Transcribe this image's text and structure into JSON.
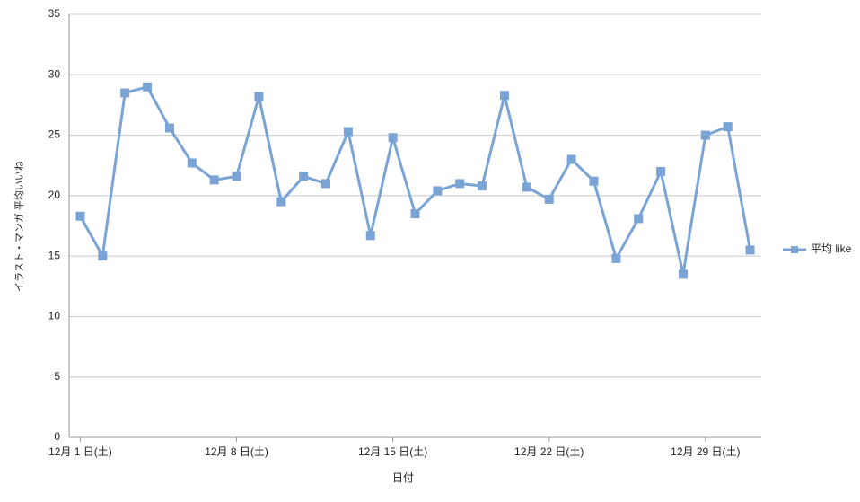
{
  "chart_data": {
    "type": "line",
    "y_label": "イラスト・マンガ 平均いいね",
    "x_label": "日付",
    "categories": [
      "12月 1 日(土)",
      null,
      null,
      null,
      null,
      null,
      null,
      "12月 8 日(土)",
      null,
      null,
      null,
      null,
      null,
      null,
      "12月 15 日(土)",
      null,
      null,
      null,
      null,
      null,
      null,
      "12月 22 日(土)",
      null,
      null,
      null,
      null,
      null,
      null,
      "12月 29 日(土)",
      null,
      null
    ],
    "series": [
      {
        "name": "平均 like",
        "color": "#7aa3d6",
        "values": [
          18.3,
          15.0,
          28.5,
          29.0,
          25.6,
          22.7,
          21.3,
          21.6,
          28.2,
          19.5,
          21.6,
          21.0,
          25.3,
          16.7,
          24.8,
          18.5,
          20.4,
          21.0,
          20.8,
          28.3,
          20.7,
          19.7,
          23.0,
          21.2,
          14.8,
          18.1,
          22.0,
          13.5,
          25.0,
          25.7,
          15.5
        ]
      }
    ],
    "ylim": [
      0,
      35
    ],
    "yticks": [
      0,
      5,
      10,
      15,
      20,
      25,
      30,
      35
    ],
    "grid": true,
    "legend": "right"
  }
}
